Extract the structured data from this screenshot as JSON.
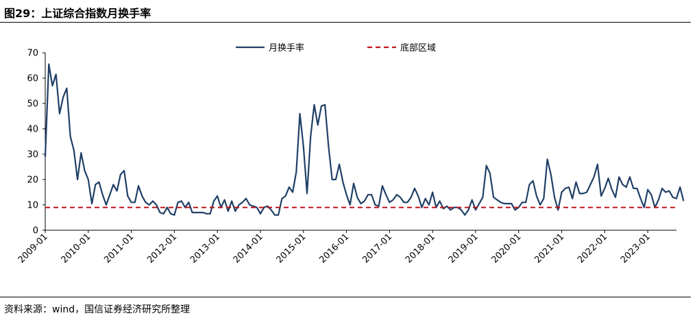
{
  "figure": {
    "title": "图29：上证综合指数月换手率",
    "source": "资料来源：wind，国信证券经济研究所整理"
  },
  "colors": {
    "series": "#1f3f66",
    "baseline": "#c0141b"
  },
  "chart_data": {
    "type": "line",
    "title": "",
    "xlabel": "",
    "ylabel": "",
    "ylim": [
      0,
      70
    ],
    "yticks": [
      0,
      10,
      20,
      30,
      40,
      50,
      60,
      70
    ],
    "x_tick_labels": [
      "2009-01",
      "2010-01",
      "2011-01",
      "2012-01",
      "2013-01",
      "2014-01",
      "2015-01",
      "2016-01",
      "2017-01",
      "2018-01",
      "2019-01",
      "2020-01",
      "2021-01",
      "2022-01",
      "2023-01"
    ],
    "x_start": "2009-01",
    "x_end": "2023-09",
    "grid": false,
    "legend_position": "top-center",
    "series": [
      {
        "name": "月换手率",
        "style": "solid",
        "values": [
          29,
          65.5,
          57,
          61.5,
          46,
          52.5,
          56,
          37,
          31.5,
          20,
          30.5,
          23.5,
          20,
          10.5,
          18,
          19,
          14,
          10,
          14,
          18,
          15.5,
          22,
          23.5,
          13.5,
          11,
          11,
          17.5,
          13.5,
          11,
          10,
          11.5,
          10,
          7,
          6.5,
          9,
          6.5,
          6,
          11,
          11.5,
          9,
          11,
          7,
          7,
          7,
          7,
          6.5,
          6.5,
          11.5,
          13.5,
          9,
          12,
          7.5,
          11.5,
          7.5,
          10,
          11,
          12.5,
          10,
          9.5,
          9,
          6.5,
          9,
          9.5,
          8,
          6,
          6,
          12.5,
          13.5,
          17,
          15,
          23,
          46,
          33,
          14.5,
          37,
          49.5,
          41.5,
          49,
          49.5,
          33,
          20,
          20,
          26,
          19,
          14,
          10,
          18.5,
          13,
          10.5,
          11.5,
          14,
          14,
          10,
          9.5,
          17.5,
          14,
          11,
          12,
          14,
          13,
          11,
          11,
          13,
          16.5,
          13.5,
          9,
          12.5,
          10,
          15,
          9,
          11.5,
          8.5,
          9.5,
          8,
          9,
          9,
          8,
          6,
          8,
          12,
          8,
          10.5,
          13,
          25.5,
          22.5,
          13,
          12,
          11,
          10.5,
          10.5,
          10.5,
          8,
          9,
          11,
          11,
          18,
          19.5,
          13.5,
          10,
          12.5,
          28,
          22,
          13,
          8,
          15,
          16.5,
          17,
          12.5,
          19,
          14.5,
          14.5,
          15,
          18,
          21,
          26,
          13.5,
          16.5,
          20.5,
          16,
          13,
          21,
          18,
          17,
          21,
          16.5,
          16.5,
          12.5,
          9,
          16,
          14,
          9,
          12,
          16.5,
          15,
          15.5,
          13,
          12.5,
          17,
          11.5
        ]
      },
      {
        "name": "底部区域",
        "style": "dashed",
        "constant": 9
      }
    ]
  }
}
